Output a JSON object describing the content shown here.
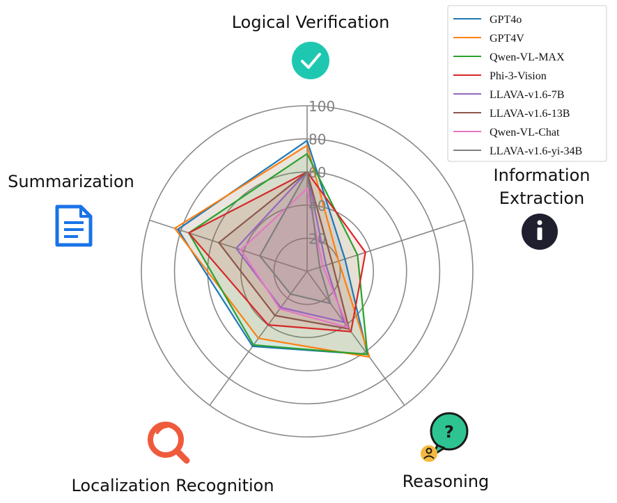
{
  "chart_data": {
    "type": "radar",
    "axes": [
      "Logical Verification",
      "Information Extraction",
      "Reasoning",
      "Localization Recognition",
      "Summarization"
    ],
    "axis_icons": [
      "check-circle-icon",
      "info-circle-icon",
      "question-bubble-icon",
      "magnifier-icon",
      "document-icon"
    ],
    "rlim": [
      0,
      100
    ],
    "ticks": [
      20,
      40,
      60,
      80,
      100
    ],
    "tick_labels": [
      "20",
      "40",
      "60",
      "80",
      "100"
    ],
    "grid": true,
    "legend_position": "top-right",
    "series": [
      {
        "name": "GPT4o",
        "color": "#1f77b4",
        "values": [
          79,
          24,
          62,
          56,
          82
        ]
      },
      {
        "name": "GPT4V",
        "color": "#ff7f0e",
        "values": [
          76,
          20,
          64,
          50,
          84
        ]
      },
      {
        "name": "Qwen-VL-MAX",
        "color": "#2ca02c",
        "values": [
          71,
          32,
          62,
          55,
          75
        ]
      },
      {
        "name": "Phi-3-Vision",
        "color": "#d62728",
        "values": [
          60,
          37,
          45,
          40,
          75
        ]
      },
      {
        "name": "LLAVA-v1.6-7B",
        "color": "#9467bd",
        "values": [
          60,
          12,
          38,
          27,
          45
        ]
      },
      {
        "name": "LLAVA-v1.6-13B",
        "color": "#8c564b",
        "values": [
          60,
          16,
          43,
          33,
          56
        ]
      },
      {
        "name": "Qwen-VL-Chat",
        "color": "#e377c2",
        "values": [
          50,
          10,
          42,
          28,
          42
        ]
      },
      {
        "name": "LLAVA-v1.6-yi-34B",
        "color": "#7f7f7f",
        "values": [
          60,
          8,
          24,
          17,
          30
        ]
      }
    ]
  }
}
